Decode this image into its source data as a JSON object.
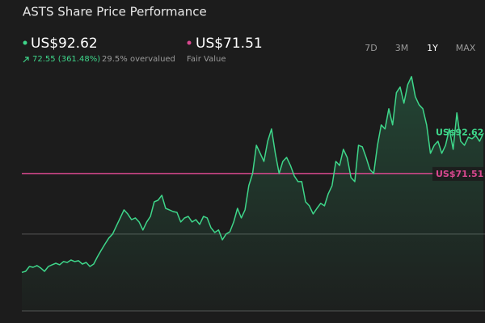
{
  "chart_data": {
    "type": "line",
    "title": "ASTS Share Price Performance",
    "price_label": "US$92.62",
    "change_label": "72.55 (361.48%)",
    "valuation_label": "29.5% overvalued",
    "fair_value": 71.51,
    "fair_value_label": "US$71.51",
    "fair_value_caption": "Fair Value",
    "ranges": [
      "7D",
      "3M",
      "1Y",
      "MAX"
    ],
    "active_range": 2,
    "series": [
      {
        "color": "#3ed68a",
        "values": [
          20.07,
          20.6,
          23.1,
          22.7,
          23.6,
          22.3,
          20.6,
          23.1,
          24.0,
          24.8,
          24.0,
          25.7,
          25.2,
          26.5,
          25.7,
          26.1,
          24.4,
          25.2,
          23.1,
          24.4,
          28.2,
          31.6,
          34.9,
          37.9,
          40.0,
          44.2,
          48.4,
          52.6,
          50.5,
          47.5,
          48.4,
          46.3,
          42.1,
          46.3,
          49.2,
          56.8,
          57.6,
          60.2,
          53.4,
          52.6,
          51.7,
          51.3,
          46.3,
          48.4,
          49.2,
          46.3,
          47.5,
          45.0,
          49.2,
          48.4,
          43.3,
          40.8,
          42.1,
          37.0,
          40.0,
          41.2,
          46.3,
          53.4,
          48.4,
          52.6,
          65.2,
          71.5,
          86.2,
          82.0,
          77.8,
          88.3,
          94.7,
          82.0,
          71.5,
          77.8,
          79.9,
          75.7,
          70.3,
          67.3,
          67.3,
          56.8,
          54.7,
          50.5,
          53.4,
          56.0,
          54.7,
          61.0,
          65.2,
          77.8,
          75.7,
          84.1,
          79.9,
          69.4,
          67.3,
          86.2,
          85.4,
          79.9,
          73.6,
          71.5,
          86.2,
          96.8,
          94.7,
          105.2,
          96.8,
          113.6,
          116.5,
          108.1,
          117.8,
          122.0,
          111.5,
          107.3,
          105.2,
          96.8,
          82.0,
          86.2,
          88.3,
          82.0,
          86.2,
          94.7,
          84.1,
          103.1,
          88.3,
          86.2,
          90.4,
          89.6,
          91.3,
          88.3,
          92.62
        ]
      }
    ],
    "fair_value_color": "#d9488f",
    "ylim": [
      0,
      124
    ],
    "yticks": [
      0,
      40
    ],
    "grid": true
  }
}
